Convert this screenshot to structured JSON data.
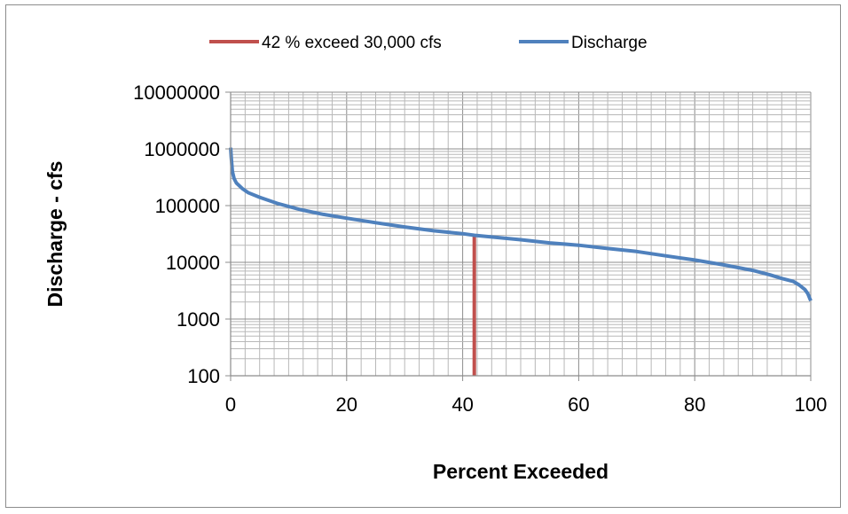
{
  "chart_data": {
    "type": "line",
    "title": "",
    "xlabel": "Percent Exceeded",
    "ylabel": "Discharge - cfs",
    "xlim": [
      0,
      100
    ],
    "ylim": [
      100,
      10000000
    ],
    "yscale": "log",
    "grid": true,
    "legend_position": "top",
    "x_ticks": [
      "0",
      "20",
      "40",
      "60",
      "80",
      "100"
    ],
    "y_ticks": [
      "100",
      "1000",
      "10000",
      "100000",
      "1000000",
      "10000000"
    ],
    "series": [
      {
        "name": "42 % exceed 30,000 cfs",
        "color": "#c0504d",
        "x": [
          42,
          42
        ],
        "y": [
          100,
          30000
        ]
      },
      {
        "name": "Discharge",
        "color": "#4f81bd",
        "x": [
          0,
          0.1,
          0.3,
          0.6,
          1,
          2,
          3,
          5,
          8,
          12,
          16,
          20,
          25,
          30,
          35,
          40,
          42,
          45,
          50,
          55,
          60,
          65,
          70,
          75,
          80,
          85,
          90,
          93,
          95,
          97,
          98,
          99,
          99.5,
          100
        ],
        "y": [
          1050000,
          700000,
          400000,
          300000,
          250000,
          200000,
          170000,
          140000,
          110000,
          85000,
          70000,
          60000,
          50000,
          42000,
          36000,
          32000,
          30000,
          28000,
          25000,
          22000,
          20000,
          17500,
          15500,
          13000,
          11000,
          9000,
          7200,
          6000,
          5200,
          4600,
          4000,
          3300,
          2800,
          2100
        ]
      }
    ]
  }
}
